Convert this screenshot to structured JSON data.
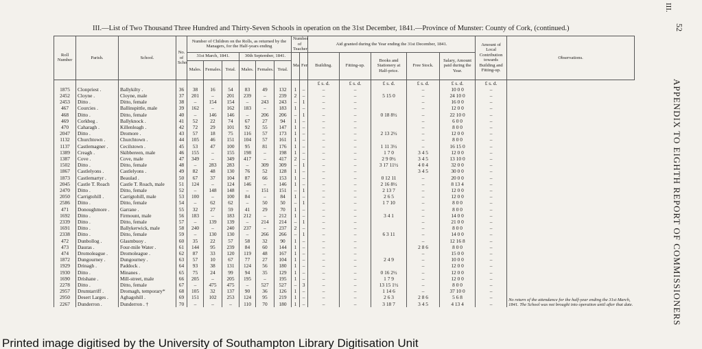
{
  "header": {
    "title": "III.—List of Two Thousand Three Hundred and Thirty-Seven Schools in operation on the 31st December, 1841.—Province of Munster: County of Cork, (continued.)",
    "page": "52",
    "side": "APPENDIX TO EIGHTH REPORT OF COMMISSIONERS",
    "corner": "III."
  },
  "table": {
    "columns": {
      "roll": "Roll Number",
      "parish": "Parish.",
      "school": "School.",
      "no": "No. of Schools.",
      "children": "Number of Children on the Rolls, as returned by the Managers, for the Half-years ending",
      "march": "31st March, 1841.",
      "september": "30th September, 1841.",
      "males": "Males.",
      "females": "Females.",
      "total": "Total.",
      "teachers": "Number of Teachers.",
      "tmales": "Males.",
      "tfemales": "Female",
      "aid": "Aid granted during the Year ending the 31st December, 1841.",
      "building": "Building.",
      "fitting": "Fitting-up.",
      "books": "Books and Stationery at Half-price.",
      "free": "Free Stock.",
      "salary": "Salary, Amount paid during the Year.",
      "local": "Amount of Local Contribution towards Building and Fitting-up.",
      "observations": "Observations.",
      "currency": "£  s.  d."
    },
    "rows": [
      [
        "1875",
        "Clonpriest .",
        "Ballykilty .",
        "36",
        "38",
        "16",
        "54",
        "83",
        "49",
        "132",
        "1",
        "–",
        "–",
        "–",
        null,
        "–",
        "10  0  0",
        "–"
      ],
      [
        "2452",
        "Cloyne .",
        "Cloyne, male",
        "37",
        "201",
        "–",
        "201",
        "239",
        "–",
        "239",
        "2",
        "–",
        "–",
        "–",
        "5 15  0",
        "–",
        "24 10  0",
        "–"
      ],
      [
        "2453",
        "Ditto .",
        "Ditto, female",
        "38",
        "–",
        "154",
        "154",
        "–",
        "243",
        "243",
        "–",
        "1",
        "–",
        "–",
        null,
        "–",
        "16  0  0",
        "–"
      ],
      [
        "467",
        "Courcies .",
        "Ballinspittle, male",
        "39",
        "162",
        "–",
        "162",
        "183",
        "–",
        "183",
        "1",
        "–",
        "–",
        "–",
        null,
        "–",
        "12  0  0",
        "–"
      ],
      [
        "468",
        "Ditto .",
        "Ditto, female",
        "40",
        "–",
        "146",
        "146",
        "–",
        "206",
        "206",
        "–",
        "1",
        "–",
        "–",
        "0 18  8½",
        "–",
        "22 10  0",
        "–"
      ],
      [
        "469",
        "Corkbeg .",
        "Ballyknock .",
        "41",
        "52",
        "22",
        "74",
        "67",
        "27",
        "94",
        "1",
        "–",
        "–",
        "–",
        null,
        "–",
        "6  0  0",
        "–"
      ],
      [
        "470",
        "Caharagh .",
        "Killenleagh .",
        "42",
        "72",
        "29",
        "101",
        "92",
        "55",
        "147",
        "1",
        "–",
        "–",
        "–",
        null,
        "–",
        "8  0  0",
        "–"
      ],
      [
        "2047",
        "Ditto .",
        "Dromore .",
        "43",
        "57",
        "18",
        "75",
        "116",
        "57",
        "173",
        "1",
        "–",
        "–",
        "–",
        "2 13  2½",
        "–",
        "12  0  0",
        "–"
      ],
      [
        "1132",
        "Churchtown .",
        "Churchtown .",
        "44",
        "105",
        "46",
        "151",
        "104",
        "57",
        "161",
        "1",
        "–",
        "–",
        "–",
        null,
        "–",
        "8  0  0",
        "–"
      ],
      [
        "1137",
        "Castlemagner .",
        "Cecilstown .",
        "45",
        "53",
        "47",
        "100",
        "95",
        "81",
        "176",
        "1",
        "–",
        "–",
        "–",
        "1 11  3½",
        "–",
        "16 15  0",
        "–"
      ],
      [
        "1389",
        "Creagh .",
        "Skibbereen, male",
        "46",
        "155",
        "–",
        "155",
        "198",
        "–",
        "198",
        "1",
        "–",
        "–",
        "–",
        "1  7  0",
        "3  4  5",
        "12  0  0",
        "–"
      ],
      [
        "1387",
        "Cove .",
        "Cove, male",
        "47",
        "349",
        "–",
        "349",
        "417",
        "–",
        "417",
        "2",
        "–",
        "–",
        "–",
        "2  9  0½",
        "3  4  5",
        "13 10  0",
        "–"
      ],
      [
        "1502",
        "Ditto .",
        "Ditto, female",
        "48",
        "–",
        "283",
        "283",
        "–",
        "309",
        "309",
        "–",
        "1",
        "–",
        "–",
        "3 17 11½",
        "4  0  4",
        "32  0  0",
        "–"
      ],
      [
        "1867",
        "Castlelyons .",
        "Castlelyons .",
        "49",
        "82",
        "48",
        "130",
        "76",
        "52",
        "128",
        "1",
        "–",
        "–",
        "–",
        null,
        "3  4  5",
        "30  0  0",
        "–"
      ],
      [
        "1873",
        "Castlemartyr .",
        "Beaulad .",
        "50",
        "67",
        "37",
        "104",
        "87",
        "66",
        "153",
        "1",
        "–",
        "–",
        "–",
        "0 12 11",
        "–",
        "20  0  0",
        "–"
      ],
      [
        "2045",
        "Castle T. Roach",
        "Castle T. Roach, male",
        "51",
        "124",
        "–",
        "124",
        "146",
        "–",
        "146",
        "1",
        "–",
        "–",
        "–",
        "2 16  8½",
        "–",
        "8 13  4",
        "–"
      ],
      [
        "2470",
        "Ditto .",
        "Ditto, female",
        "52",
        "–",
        "148",
        "148",
        "–",
        "151",
        "151",
        "–",
        "1",
        "–",
        "–",
        "2 13  7",
        "–",
        "12  0  0",
        "–"
      ],
      [
        "2050",
        "Carrigtohill .",
        "Carrigtohill, male",
        "53",
        "100",
        "–",
        "100",
        "84",
        "–",
        "84",
        "1",
        "–",
        "–",
        "–",
        "2  6  5",
        "–",
        "12  0  0",
        "–"
      ],
      [
        "2586",
        "Ditto .",
        "Ditto, female",
        "54",
        "–",
        "62",
        "62",
        "–",
        "50",
        "50",
        "–",
        "1",
        "–",
        "–",
        "1  7 10",
        "–",
        "8  0  0",
        "–"
      ],
      [
        "471",
        "Donoughmore .",
        "Garrane .",
        "55",
        "32",
        "27",
        "59",
        "41",
        "29",
        "70",
        "1",
        "–",
        "–",
        "–",
        null,
        "–",
        "8  0  0",
        "–"
      ],
      [
        "1692",
        "Ditto .",
        "Firmount, male",
        "56",
        "183",
        "–",
        "183",
        "212",
        "–",
        "212",
        "1",
        "–",
        "–",
        "–",
        "3  4  1",
        "–",
        "14  0  0",
        "–"
      ],
      [
        "2339",
        "Ditto .",
        "Ditto, female",
        "57",
        "–",
        "139",
        "139",
        "–",
        "214",
        "214",
        "–",
        "1",
        "–",
        "–",
        null,
        "–",
        "21  0  0",
        "–"
      ],
      [
        "1691",
        "Ditto .",
        "Ballykerwick, male",
        "58",
        "240",
        "–",
        "240",
        "237",
        "–",
        "237",
        "2",
        "–",
        "–",
        "–",
        null,
        "–",
        "8  0  0",
        "–"
      ],
      [
        "2338",
        "Ditto .",
        "Ditto, female",
        "59",
        "–",
        "130",
        "130",
        "–",
        "266",
        "266",
        "–",
        "1",
        "–",
        "–",
        "6  3 11",
        "–",
        "14  0  0",
        "–"
      ],
      [
        "472",
        "Dunbollog .",
        "Glasmbuoy .",
        "60",
        "35",
        "22",
        "57",
        "58",
        "32",
        "90",
        "1",
        "–",
        "–",
        "–",
        null,
        "–",
        "12 16  8",
        "–"
      ],
      [
        "473",
        "Dauras .",
        "Four-mile Water .",
        "61",
        "144",
        "95",
        "239",
        "84",
        "60",
        "144",
        "1",
        "–",
        "–",
        "–",
        null,
        "2  8  6",
        "8  0  0",
        "–"
      ],
      [
        "474",
        "Dromoleague .",
        "Dromoleague .",
        "62",
        "87",
        "33",
        "120",
        "119",
        "48",
        "167",
        "1",
        "–",
        "–",
        "–",
        null,
        "–",
        "15  0  0",
        "–"
      ],
      [
        "1872",
        "Dungourney .",
        "Dungourney .",
        "63",
        "57",
        "10",
        "67",
        "77",
        "27",
        "104",
        "1",
        "–",
        "–",
        "–",
        "2  4  9",
        "–",
        "10  0  0",
        "–"
      ],
      [
        "1929",
        "Drinagh .",
        "Paddock .",
        "64",
        "93",
        "38",
        "131",
        "124",
        "56",
        "180",
        "1",
        "–",
        "–",
        "–",
        null,
        "–",
        "12  0  0",
        "–"
      ],
      [
        "1930",
        "Ditto .",
        "Minanes .",
        "65",
        "75",
        "24",
        "99",
        "94",
        "35",
        "129",
        "1",
        "–",
        "–",
        "–",
        "0 16  2½",
        "–",
        "12  0  0",
        "–"
      ],
      [
        "1690",
        "Drishane .",
        "Mill-street, male",
        "66",
        "205",
        "–",
        "205",
        "195",
        "–",
        "195",
        "1",
        "–",
        "–",
        "–",
        "1  7  9",
        "–",
        "12  0  0",
        "–"
      ],
      [
        "2278",
        "Ditto .",
        "Ditto, female",
        "67",
        "–",
        "475",
        "475",
        "–",
        "527",
        "527",
        "–",
        "3",
        "–",
        "–",
        "13 15  1½",
        "–",
        "8  0  0",
        "–"
      ],
      [
        "2957",
        "Drumtarriff .",
        "Dromagh, temporary*",
        "68",
        "105",
        "32",
        "137",
        "90",
        "36",
        "126",
        "1",
        "–",
        "–",
        "–",
        "1 14  6",
        "–",
        "37 10  0",
        "–"
      ],
      [
        "2950",
        "Desert Larges .",
        "Aghagohill .",
        "69",
        "151",
        "102",
        "253",
        "124",
        "95",
        "219",
        "1",
        "–",
        "–",
        "–",
        "2  6  3",
        "2  8  6",
        "5  6  8",
        "–"
      ],
      [
        "2267",
        "Dunderron .",
        "Dunderron .  †",
        "70",
        "–",
        "–",
        "–",
        "110",
        "70",
        "180",
        "1",
        "–",
        "–",
        "–",
        "3  18  7",
        "3  4  5",
        "4 13  4",
        "–"
      ]
    ],
    "observation": "No return of the attendance for the half-year ending the 31st March, 1841. The School was not brought into operation until after that date."
  },
  "footer": "Printed image digitised by the University of Southampton Library Digitisation Unit"
}
